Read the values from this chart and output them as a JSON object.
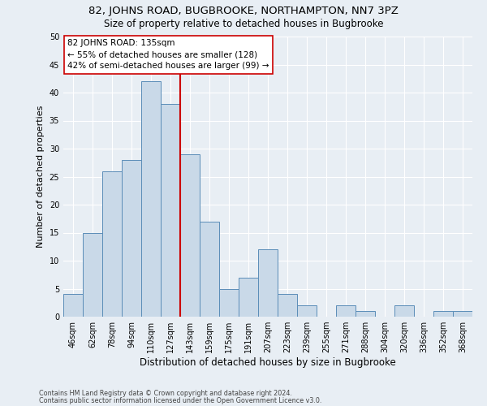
{
  "title": "82, JOHNS ROAD, BUGBROOKE, NORTHAMPTON, NN7 3PZ",
  "subtitle": "Size of property relative to detached houses in Bugbrooke",
  "xlabel": "Distribution of detached houses by size in Bugbrooke",
  "ylabel": "Number of detached properties",
  "categories": [
    "46sqm",
    "62sqm",
    "78sqm",
    "94sqm",
    "110sqm",
    "127sqm",
    "143sqm",
    "159sqm",
    "175sqm",
    "191sqm",
    "207sqm",
    "223sqm",
    "239sqm",
    "255sqm",
    "271sqm",
    "288sqm",
    "304sqm",
    "320sqm",
    "336sqm",
    "352sqm",
    "368sqm"
  ],
  "values": [
    4,
    15,
    26,
    28,
    42,
    38,
    29,
    17,
    5,
    7,
    12,
    4,
    2,
    0,
    2,
    1,
    0,
    2,
    0,
    1,
    1
  ],
  "bar_color": "#c9d9e8",
  "bar_edge_color": "#5b8db8",
  "bar_width": 1.0,
  "vline_x": 5.5,
  "vline_color": "#cc0000",
  "annotation_line1": "82 JOHNS ROAD: 135sqm",
  "annotation_line2": "← 55% of detached houses are smaller (128)",
  "annotation_line3": "42% of semi-detached houses are larger (99) →",
  "annotation_box_color": "#cc0000",
  "annotation_box_bg": "#ffffff",
  "ylim": [
    0,
    50
  ],
  "yticks": [
    0,
    5,
    10,
    15,
    20,
    25,
    30,
    35,
    40,
    45,
    50
  ],
  "bg_color": "#e8eef4",
  "footer_line1": "Contains HM Land Registry data © Crown copyright and database right 2024.",
  "footer_line2": "Contains public sector information licensed under the Open Government Licence v3.0.",
  "title_fontsize": 9.5,
  "subtitle_fontsize": 8.5,
  "xlabel_fontsize": 8.5,
  "ylabel_fontsize": 8,
  "annotation_fontsize": 7.5,
  "tick_fontsize": 7,
  "footer_fontsize": 5.8
}
